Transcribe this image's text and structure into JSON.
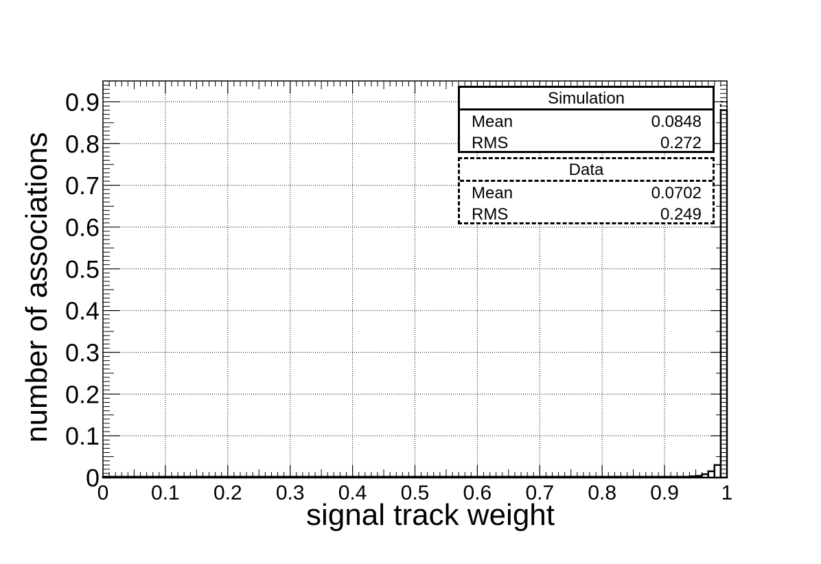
{
  "chart_data": {
    "type": "bar",
    "xlabel": "signal track weight",
    "ylabel": "number of associations",
    "xlim": [
      0,
      1
    ],
    "ylim": [
      0,
      0.95
    ],
    "xticks": [
      "0",
      "0.1",
      "0.2",
      "0.3",
      "0.4",
      "0.5",
      "0.6",
      "0.7",
      "0.8",
      "0.9",
      "1"
    ],
    "yticks": [
      "0",
      "0.1",
      "0.2",
      "0.3",
      "0.4",
      "0.5",
      "0.6",
      "0.7",
      "0.8",
      "0.9"
    ],
    "grid": true,
    "bin_width": 0.01,
    "series": [
      {
        "name": "Simulation",
        "style": "solid",
        "values": [
          0.002,
          0.002,
          0.002,
          0.002,
          0.002,
          0.002,
          0.002,
          0.002,
          0.002,
          0.002,
          0.002,
          0.002,
          0.002,
          0.002,
          0.002,
          0.002,
          0.002,
          0.002,
          0.002,
          0.002,
          0.002,
          0.002,
          0.002,
          0.002,
          0.002,
          0.002,
          0.002,
          0.002,
          0.002,
          0.002,
          0.002,
          0.002,
          0.002,
          0.002,
          0.002,
          0.002,
          0.002,
          0.002,
          0.002,
          0.002,
          0.002,
          0.002,
          0.002,
          0.002,
          0.002,
          0.002,
          0.002,
          0.002,
          0.002,
          0.002,
          0.002,
          0.002,
          0.002,
          0.002,
          0.002,
          0.002,
          0.002,
          0.002,
          0.002,
          0.002,
          0.002,
          0.002,
          0.002,
          0.002,
          0.002,
          0.002,
          0.002,
          0.002,
          0.002,
          0.002,
          0.002,
          0.002,
          0.002,
          0.002,
          0.002,
          0.002,
          0.002,
          0.002,
          0.002,
          0.002,
          0.002,
          0.002,
          0.002,
          0.002,
          0.002,
          0.002,
          0.002,
          0.002,
          0.002,
          0.002,
          0.002,
          0.002,
          0.002,
          0.002,
          0.003,
          0.004,
          0.008,
          0.015,
          0.03,
          0.88
        ]
      },
      {
        "name": "Data",
        "style": "dashed",
        "values": [
          0.002,
          0.002,
          0.002,
          0.002,
          0.002,
          0.002,
          0.002,
          0.002,
          0.002,
          0.002,
          0.002,
          0.002,
          0.002,
          0.002,
          0.002,
          0.002,
          0.002,
          0.002,
          0.002,
          0.002,
          0.002,
          0.002,
          0.002,
          0.002,
          0.002,
          0.002,
          0.002,
          0.002,
          0.002,
          0.002,
          0.002,
          0.002,
          0.002,
          0.002,
          0.002,
          0.002,
          0.002,
          0.002,
          0.002,
          0.002,
          0.002,
          0.002,
          0.002,
          0.002,
          0.002,
          0.002,
          0.002,
          0.002,
          0.002,
          0.002,
          0.002,
          0.002,
          0.002,
          0.002,
          0.002,
          0.002,
          0.002,
          0.002,
          0.002,
          0.002,
          0.002,
          0.002,
          0.002,
          0.002,
          0.002,
          0.002,
          0.002,
          0.002,
          0.002,
          0.002,
          0.002,
          0.002,
          0.002,
          0.002,
          0.002,
          0.002,
          0.002,
          0.002,
          0.002,
          0.002,
          0.002,
          0.002,
          0.002,
          0.002,
          0.002,
          0.002,
          0.002,
          0.002,
          0.002,
          0.002,
          0.002,
          0.002,
          0.002,
          0.002,
          0.003,
          0.004,
          0.008,
          0.015,
          0.03,
          0.9
        ]
      }
    ]
  },
  "stats": {
    "simulation": {
      "title": "Simulation",
      "mean_label": "Mean",
      "mean": "0.0848",
      "rms_label": "RMS",
      "rms": "0.272"
    },
    "data": {
      "title": "Data",
      "mean_label": "Mean",
      "mean": "0.0702",
      "rms_label": "RMS",
      "rms": "0.249"
    }
  }
}
